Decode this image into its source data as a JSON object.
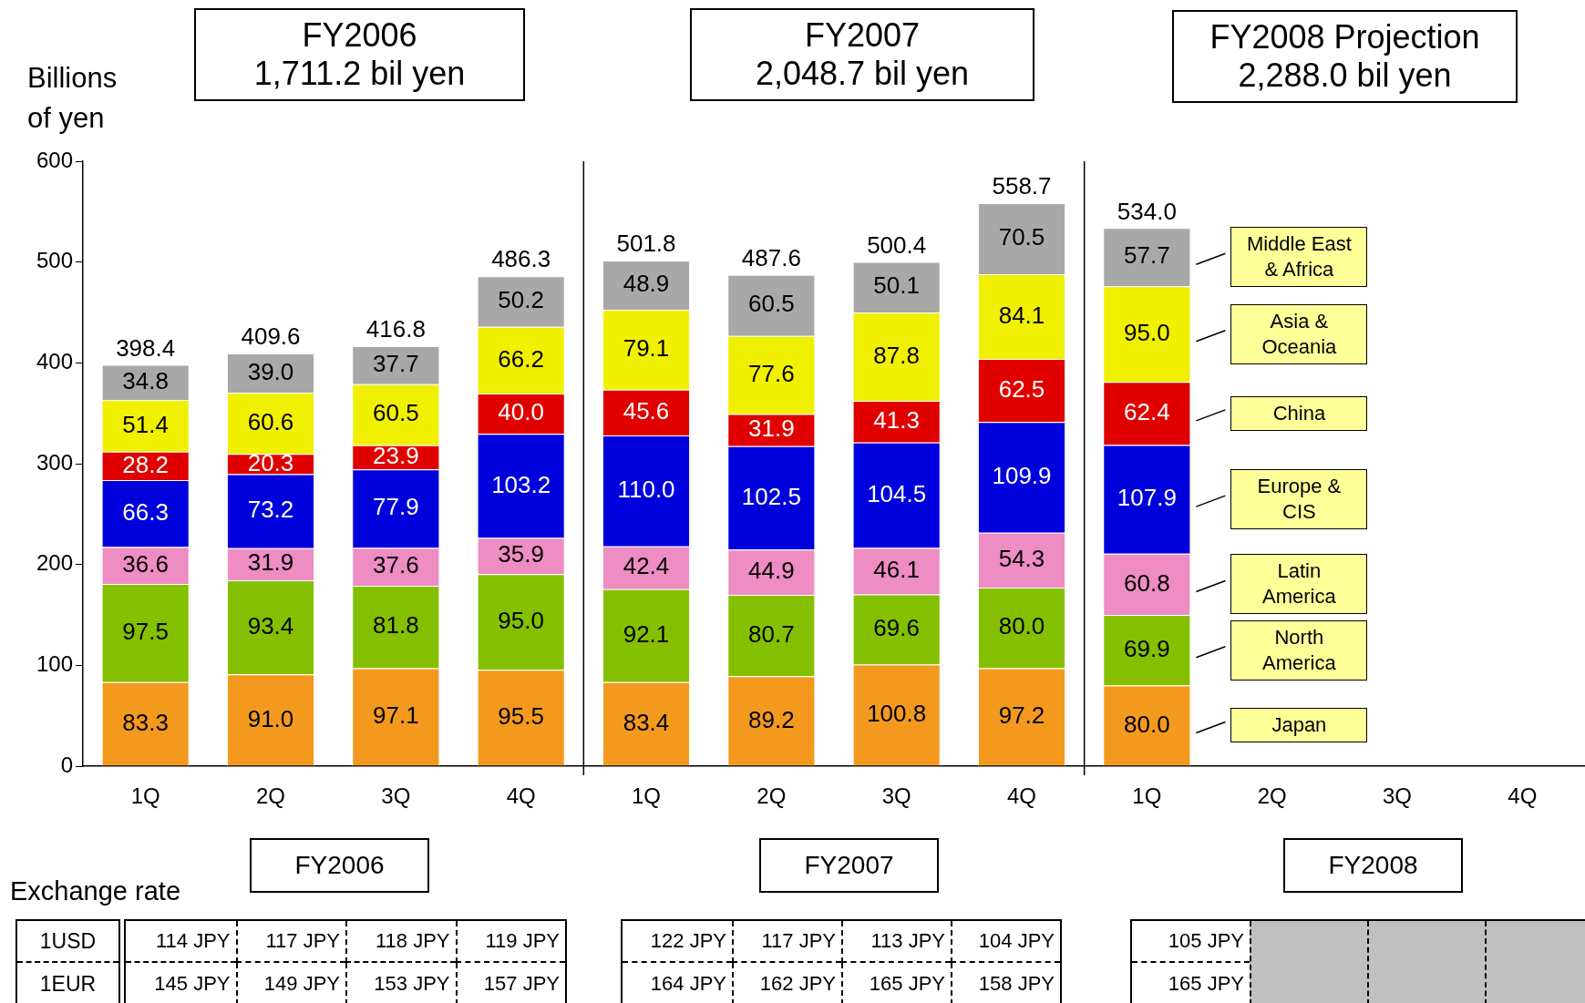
{
  "chart_data": {
    "type": "bar",
    "stacked": true,
    "ylabel": "Billions\nof yen",
    "categories": [
      "1Q",
      "2Q",
      "3Q",
      "4Q",
      "1Q",
      "2Q",
      "3Q",
      "4Q",
      "1Q",
      "2Q",
      "3Q",
      "4Q"
    ],
    "series": [
      {
        "name": "Japan",
        "color": "#f39a1e",
        "values": [
          83.3,
          91.0,
          97.1,
          95.5,
          83.4,
          89.2,
          100.8,
          97.2,
          80.0,
          null,
          null,
          null
        ],
        "value_labels": [
          "83.3",
          "91.0",
          "97.1",
          "95.5",
          "83.4",
          "89.2",
          "100.8",
          "97.2",
          "80.0",
          null,
          null,
          null
        ]
      },
      {
        "name": "North America",
        "color": "#84c000",
        "values": [
          97.5,
          93.4,
          81.8,
          95.0,
          92.1,
          80.7,
          69.6,
          80.0,
          69.9,
          null,
          null,
          null
        ],
        "value_labels": [
          "97.5",
          "93.4",
          "81.8",
          "95.0",
          "92.1",
          "80.7",
          "69.6",
          "80.0",
          "69.9",
          null,
          null,
          null
        ]
      },
      {
        "name": "Latin America",
        "color": "#ee8cc4",
        "values": [
          36.6,
          31.9,
          37.6,
          35.9,
          42.4,
          44.9,
          46.1,
          54.3,
          60.8,
          null,
          null,
          null
        ],
        "value_labels": [
          "36.6",
          "31.9",
          "37.6",
          "35.9",
          "42.4",
          "44.9",
          "46.1",
          "54.3",
          "60.8",
          null,
          null,
          null
        ]
      },
      {
        "name": "Europe & CIS",
        "color": "#0000dc",
        "values": [
          66.3,
          73.2,
          77.9,
          103.2,
          110.0,
          102.5,
          104.5,
          109.9,
          107.9,
          null,
          null,
          null
        ],
        "value_labels": [
          "66.3",
          "73.2",
          "77.9",
          "103.2",
          "110.0",
          "102.5",
          "104.5",
          "109.9",
          "107.9",
          null,
          null,
          null
        ]
      },
      {
        "name": "China",
        "color": "#e00000",
        "values": [
          28.2,
          20.3,
          23.9,
          40.0,
          45.6,
          31.9,
          41.3,
          62.5,
          62.4,
          null,
          null,
          null
        ],
        "value_labels": [
          "28.2",
          "20.3",
          "23.9",
          "40.0",
          "45.6",
          "31.9",
          "41.3",
          "62.5",
          "62.4",
          null,
          null,
          null
        ]
      },
      {
        "name": "Asia & Oceania",
        "color": "#f0f000",
        "values": [
          51.4,
          60.6,
          60.5,
          66.2,
          79.1,
          77.6,
          87.8,
          84.1,
          95.0,
          null,
          null,
          null
        ],
        "value_labels": [
          "51.4",
          "60.6",
          "60.5",
          "66.2",
          "79.1",
          "77.6",
          "87.8",
          "84.1",
          "95.0",
          null,
          null,
          null
        ]
      },
      {
        "name": "Middle East & Africa",
        "color": "#a8a8a8",
        "values": [
          34.8,
          39.0,
          37.7,
          50.2,
          48.9,
          60.5,
          50.1,
          70.5,
          57.7,
          null,
          null,
          null
        ],
        "value_labels": [
          "34.8",
          "39.0",
          "37.7",
          "50.2",
          "48.9",
          "60.5",
          "50.1",
          "70.5",
          "57.7",
          null,
          null,
          null
        ]
      }
    ],
    "totals": [
      "398.4",
      "409.6",
      "416.8",
      "486.3",
      "501.8",
      "487.6",
      "500.4",
      "558.7",
      "534.0",
      null,
      null,
      null
    ],
    "ylim": [
      0,
      600
    ],
    "yticks": [
      0,
      100,
      200,
      300,
      400,
      500,
      600
    ],
    "grid": false,
    "legend": false,
    "annotations": [
      "FY2006\n1,711.2 bil yen",
      "FY2007\n2,048.7 bil yen",
      "FY2008 Projection\n2,288.0 bil yen",
      "FY2006",
      "FY2007",
      "FY2008",
      "Exchange rate",
      "1USD",
      "1EUR",
      "114 JPY",
      "117 JPY",
      "118 JPY",
      "119 JPY",
      "122 JPY",
      "117 JPY",
      "113 JPY",
      "104 JPY",
      "105 JPY",
      "145 JPY",
      "149 JPY",
      "153 JPY",
      "157 JPY",
      "164 JPY",
      "162 JPY",
      "165 JPY",
      "158 JPY",
      "165 JPY"
    ]
  }
}
